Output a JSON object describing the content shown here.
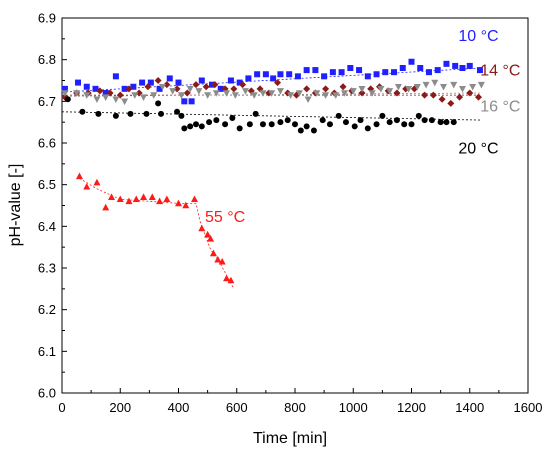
{
  "chart_data": {
    "type": "scatter",
    "xlabel": "Time [min]",
    "ylabel": "pH-value [-]",
    "xlim": [
      0,
      1600
    ],
    "ylim": [
      6.0,
      6.9
    ],
    "xticks": [
      0,
      200,
      400,
      600,
      800,
      1000,
      1200,
      1400,
      1600
    ],
    "yticks": [
      6.0,
      6.1,
      6.2,
      6.3,
      6.4,
      6.5,
      6.6,
      6.7,
      6.8,
      6.9
    ],
    "grid": false,
    "legend": "none",
    "series": [
      {
        "name": "10 °C",
        "color": "#1f1fff",
        "marker": "square",
        "trend": [
          [
            0,
            6.722
          ],
          [
            1440,
            6.78
          ]
        ],
        "points": [
          [
            10,
            6.73
          ],
          [
            55,
            6.745
          ],
          [
            85,
            6.735
          ],
          [
            115,
            6.73
          ],
          [
            150,
            6.72
          ],
          [
            185,
            6.76
          ],
          [
            215,
            6.73
          ],
          [
            245,
            6.735
          ],
          [
            275,
            6.745
          ],
          [
            305,
            6.745
          ],
          [
            335,
            6.73
          ],
          [
            370,
            6.755
          ],
          [
            400,
            6.745
          ],
          [
            420,
            6.7
          ],
          [
            445,
            6.7
          ],
          [
            480,
            6.75
          ],
          [
            515,
            6.74
          ],
          [
            545,
            6.73
          ],
          [
            580,
            6.75
          ],
          [
            610,
            6.745
          ],
          [
            640,
            6.755
          ],
          [
            670,
            6.765
          ],
          [
            700,
            6.765
          ],
          [
            725,
            6.755
          ],
          [
            750,
            6.765
          ],
          [
            780,
            6.765
          ],
          [
            810,
            6.76
          ],
          [
            840,
            6.775
          ],
          [
            870,
            6.775
          ],
          [
            900,
            6.76
          ],
          [
            930,
            6.77
          ],
          [
            960,
            6.77
          ],
          [
            990,
            6.78
          ],
          [
            1020,
            6.775
          ],
          [
            1050,
            6.76
          ],
          [
            1080,
            6.765
          ],
          [
            1110,
            6.77
          ],
          [
            1140,
            6.77
          ],
          [
            1170,
            6.78
          ],
          [
            1200,
            6.795
          ],
          [
            1230,
            6.78
          ],
          [
            1260,
            6.77
          ],
          [
            1290,
            6.775
          ],
          [
            1320,
            6.79
          ],
          [
            1350,
            6.785
          ],
          [
            1375,
            6.78
          ],
          [
            1400,
            6.785
          ],
          [
            1435,
            6.775
          ]
        ]
      },
      {
        "name": "14 °C",
        "color": "#8b1a1a",
        "marker": "diamond",
        "trend": [
          [
            0,
            6.715
          ],
          [
            1440,
            6.715
          ]
        ],
        "points": [
          [
            10,
            6.71
          ],
          [
            50,
            6.72
          ],
          [
            90,
            6.72
          ],
          [
            130,
            6.725
          ],
          [
            165,
            6.72
          ],
          [
            200,
            6.715
          ],
          [
            230,
            6.73
          ],
          [
            265,
            6.72
          ],
          [
            295,
            6.735
          ],
          [
            330,
            6.75
          ],
          [
            360,
            6.74
          ],
          [
            395,
            6.73
          ],
          [
            430,
            6.72
          ],
          [
            460,
            6.74
          ],
          [
            495,
            6.735
          ],
          [
            525,
            6.74
          ],
          [
            560,
            6.73
          ],
          [
            590,
            6.73
          ],
          [
            620,
            6.74
          ],
          [
            650,
            6.725
          ],
          [
            680,
            6.73
          ],
          [
            710,
            6.72
          ],
          [
            740,
            6.745
          ],
          [
            775,
            6.72
          ],
          [
            805,
            6.715
          ],
          [
            840,
            6.73
          ],
          [
            870,
            6.72
          ],
          [
            905,
            6.73
          ],
          [
            935,
            6.72
          ],
          [
            965,
            6.735
          ],
          [
            995,
            6.725
          ],
          [
            1030,
            6.72
          ],
          [
            1060,
            6.73
          ],
          [
            1090,
            6.735
          ],
          [
            1120,
            6.725
          ],
          [
            1150,
            6.72
          ],
          [
            1180,
            6.73
          ],
          [
            1210,
            6.73
          ],
          [
            1245,
            6.715
          ],
          [
            1275,
            6.715
          ],
          [
            1305,
            6.705
          ],
          [
            1335,
            6.695
          ],
          [
            1365,
            6.71
          ],
          [
            1400,
            6.72
          ],
          [
            1430,
            6.71
          ]
        ]
      },
      {
        "name": "16 °C",
        "color": "#8c8c8c",
        "marker": "triangle-down",
        "trend": [
          [
            0,
            6.712
          ],
          [
            1440,
            6.72
          ]
        ],
        "points": [
          [
            10,
            6.72
          ],
          [
            50,
            6.72
          ],
          [
            85,
            6.715
          ],
          [
            120,
            6.705
          ],
          [
            150,
            6.71
          ],
          [
            185,
            6.705
          ],
          [
            215,
            6.7
          ],
          [
            250,
            6.715
          ],
          [
            280,
            6.71
          ],
          [
            315,
            6.715
          ],
          [
            345,
            6.735
          ],
          [
            380,
            6.725
          ],
          [
            410,
            6.715
          ],
          [
            440,
            6.73
          ],
          [
            470,
            6.725
          ],
          [
            500,
            6.715
          ],
          [
            530,
            6.72
          ],
          [
            565,
            6.72
          ],
          [
            595,
            6.715
          ],
          [
            630,
            6.725
          ],
          [
            660,
            6.715
          ],
          [
            690,
            6.72
          ],
          [
            720,
            6.72
          ],
          [
            750,
            6.725
          ],
          [
            785,
            6.715
          ],
          [
            815,
            6.72
          ],
          [
            845,
            6.705
          ],
          [
            875,
            6.72
          ],
          [
            905,
            6.715
          ],
          [
            940,
            6.715
          ],
          [
            970,
            6.72
          ],
          [
            1000,
            6.725
          ],
          [
            1030,
            6.73
          ],
          [
            1065,
            6.72
          ],
          [
            1095,
            6.73
          ],
          [
            1125,
            6.725
          ],
          [
            1155,
            6.735
          ],
          [
            1190,
            6.73
          ],
          [
            1220,
            6.735
          ],
          [
            1250,
            6.74
          ],
          [
            1280,
            6.745
          ],
          [
            1310,
            6.735
          ],
          [
            1345,
            6.74
          ],
          [
            1375,
            6.73
          ],
          [
            1410,
            6.735
          ],
          [
            1440,
            6.74
          ]
        ]
      },
      {
        "name": "20 °C",
        "color": "#000000",
        "marker": "circle",
        "trend": [
          [
            0,
            6.675
          ],
          [
            1440,
            6.655
          ]
        ],
        "points": [
          [
            20,
            6.705
          ],
          [
            70,
            6.675
          ],
          [
            125,
            6.67
          ],
          [
            185,
            6.665
          ],
          [
            235,
            6.67
          ],
          [
            290,
            6.67
          ],
          [
            330,
            6.695
          ],
          [
            340,
            6.67
          ],
          [
            395,
            6.675
          ],
          [
            410,
            6.665
          ],
          [
            420,
            6.635
          ],
          [
            440,
            6.64
          ],
          [
            460,
            6.645
          ],
          [
            480,
            6.64
          ],
          [
            505,
            6.65
          ],
          [
            530,
            6.655
          ],
          [
            560,
            6.645
          ],
          [
            585,
            6.66
          ],
          [
            610,
            6.635
          ],
          [
            645,
            6.645
          ],
          [
            665,
            6.67
          ],
          [
            690,
            6.645
          ],
          [
            720,
            6.645
          ],
          [
            750,
            6.65
          ],
          [
            775,
            6.655
          ],
          [
            800,
            6.645
          ],
          [
            820,
            6.63
          ],
          [
            840,
            6.64
          ],
          [
            865,
            6.63
          ],
          [
            895,
            6.655
          ],
          [
            920,
            6.645
          ],
          [
            950,
            6.665
          ],
          [
            975,
            6.65
          ],
          [
            1005,
            6.64
          ],
          [
            1025,
            6.655
          ],
          [
            1050,
            6.635
          ],
          [
            1080,
            6.645
          ],
          [
            1100,
            6.665
          ],
          [
            1125,
            6.65
          ],
          [
            1150,
            6.655
          ],
          [
            1175,
            6.645
          ],
          [
            1200,
            6.645
          ],
          [
            1225,
            6.665
          ],
          [
            1245,
            6.655
          ],
          [
            1270,
            6.655
          ],
          [
            1300,
            6.65
          ],
          [
            1320,
            6.65
          ],
          [
            1345,
            6.65
          ]
        ]
      },
      {
        "name": "55 °C",
        "color": "#ff1a1a",
        "marker": "triangle-up",
        "trend": [
          [
            60,
            6.515
          ],
          [
            120,
            6.49
          ],
          [
            200,
            6.465
          ],
          [
            400,
            6.455
          ],
          [
            460,
            6.455
          ],
          [
            475,
            6.41
          ],
          [
            510,
            6.345
          ],
          [
            540,
            6.315
          ],
          [
            590,
            6.25
          ]
        ],
        "points": [
          [
            60,
            6.52
          ],
          [
            85,
            6.495
          ],
          [
            120,
            6.505
          ],
          [
            150,
            6.445
          ],
          [
            170,
            6.47
          ],
          [
            200,
            6.465
          ],
          [
            230,
            6.46
          ],
          [
            255,
            6.465
          ],
          [
            280,
            6.47
          ],
          [
            310,
            6.47
          ],
          [
            335,
            6.46
          ],
          [
            360,
            6.465
          ],
          [
            400,
            6.455
          ],
          [
            425,
            6.45
          ],
          [
            455,
            6.465
          ],
          [
            480,
            6.395
          ],
          [
            500,
            6.38
          ],
          [
            510,
            6.37
          ],
          [
            520,
            6.335
          ],
          [
            535,
            6.32
          ],
          [
            550,
            6.315
          ],
          [
            565,
            6.275
          ],
          [
            580,
            6.27
          ]
        ]
      }
    ],
    "annotations": [
      {
        "series": "10 °C",
        "text": "10 °C",
        "x": 1430,
        "y": 6.845
      },
      {
        "series": "14 °C",
        "text": "14 °C",
        "x": 1505,
        "y": 6.762
      },
      {
        "series": "16 °C",
        "text": "16 °C",
        "x": 1505,
        "y": 6.676
      },
      {
        "series": "20 °C",
        "text": "20 °C",
        "x": 1430,
        "y": 6.575
      },
      {
        "series": "55 °C",
        "text": "55 °C",
        "x": 560,
        "y": 6.41
      }
    ]
  }
}
